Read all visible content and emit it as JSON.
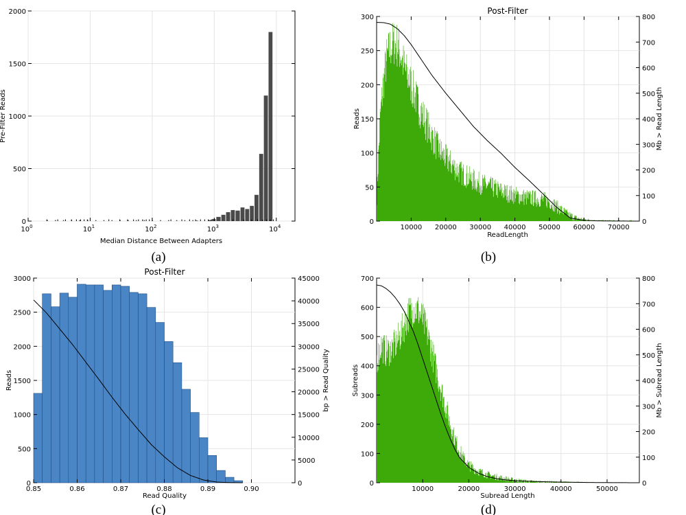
{
  "chart_data": [
    {
      "id": "a",
      "type": "bar",
      "caption": "(a)",
      "title": "",
      "xlabel": "Median Distance Between Adapters",
      "ylabel": "Pre-Filter Reads",
      "xscale": "log",
      "xlim": [
        1,
        20000
      ],
      "ylim": [
        0,
        2000
      ],
      "xticks": [
        {
          "base": "10",
          "exp": "0",
          "v": 1
        },
        {
          "base": "10",
          "exp": "1",
          "v": 10
        },
        {
          "base": "10",
          "exp": "2",
          "v": 100
        },
        {
          "base": "10",
          "exp": "3",
          "v": 1000
        },
        {
          "base": "10",
          "exp": "4",
          "v": 10000
        }
      ],
      "yticks": [
        "0",
        "500",
        "1000",
        "1500",
        "2000"
      ],
      "bar_color": "#4a4a4a",
      "grid": true,
      "bins": [
        {
          "x0": 500,
          "x1": 560,
          "y": 5
        },
        {
          "x0": 800,
          "x1": 920,
          "y": 10
        },
        {
          "x0": 920,
          "x1": 1080,
          "y": 20
        },
        {
          "x0": 1080,
          "x1": 1300,
          "y": 40
        },
        {
          "x0": 1300,
          "x1": 1550,
          "y": 60
        },
        {
          "x0": 1550,
          "x1": 1850,
          "y": 85
        },
        {
          "x0": 1850,
          "x1": 2200,
          "y": 105
        },
        {
          "x0": 2200,
          "x1": 2650,
          "y": 100
        },
        {
          "x0": 2650,
          "x1": 3150,
          "y": 130
        },
        {
          "x0": 3150,
          "x1": 3750,
          "y": 115
        },
        {
          "x0": 3750,
          "x1": 4450,
          "y": 145
        },
        {
          "x0": 4450,
          "x1": 5300,
          "y": 250
        },
        {
          "x0": 5300,
          "x1": 6300,
          "y": 640
        },
        {
          "x0": 6300,
          "x1": 7500,
          "y": 1195
        },
        {
          "x0": 7500,
          "x1": 8900,
          "y": 1800
        }
      ]
    },
    {
      "id": "b",
      "type": "bar",
      "caption": "(b)",
      "title": "Post-Filter",
      "xlabel": "ReadLength",
      "ylabel": "Reads",
      "y2label": "Mb > Read Length",
      "xlim": [
        0,
        76000
      ],
      "ylim": [
        0,
        300
      ],
      "y2lim": [
        0,
        800
      ],
      "xticks": [
        "10000",
        "20000",
        "30000",
        "40000",
        "50000",
        "60000",
        "70000"
      ],
      "xtick_values": [
        10000,
        20000,
        30000,
        40000,
        50000,
        60000,
        70000
      ],
      "yticks": [
        "0",
        "50",
        "100",
        "150",
        "200",
        "250",
        "300"
      ],
      "y2ticks": [
        "0",
        "100",
        "200",
        "300",
        "400",
        "500",
        "600",
        "700",
        "800"
      ],
      "bar_color": "#3eaa0a",
      "grid": true,
      "histogram_envelope": {
        "x": [
          0,
          1000,
          2000,
          3000,
          4000,
          5000,
          6000,
          7000,
          8000,
          9000,
          10000,
          12000,
          14000,
          16000,
          18000,
          20000,
          22000,
          24000,
          26000,
          28000,
          30000,
          32000,
          34000,
          36000,
          38000,
          40000,
          42000,
          44000,
          46000,
          48000,
          50000,
          52000,
          54000,
          56000,
          58000,
          60000,
          62000,
          64000,
          66000,
          68000,
          70000,
          72000,
          74000
        ],
        "y": [
          30,
          150,
          205,
          240,
          255,
          262,
          258,
          245,
          225,
          212,
          200,
          172,
          148,
          125,
          105,
          92,
          82,
          72,
          66,
          60,
          55,
          52,
          48,
          44,
          41,
          38,
          36,
          34,
          33,
          32,
          29,
          22,
          14,
          8,
          4,
          2,
          1,
          0.5,
          0.3,
          0.2,
          0.1,
          0.05,
          0
        ]
      },
      "cumulative_curve": {
        "x": [
          0,
          2000,
          4000,
          6000,
          8000,
          10000,
          12000,
          14000,
          16000,
          20000,
          24000,
          28000,
          32000,
          36000,
          40000,
          44000,
          48000,
          52000,
          56000,
          60000,
          64000,
          68000,
          72000,
          76000
        ],
        "y": [
          777,
          776,
          770,
          752,
          725,
          690,
          650,
          610,
          570,
          500,
          435,
          370,
          315,
          265,
          210,
          160,
          108,
          55,
          12,
          3,
          1,
          0.5,
          0.2,
          0
        ]
      }
    },
    {
      "id": "c",
      "type": "bar",
      "caption": "(c)",
      "title": "Post-Filter",
      "xlabel": "Read Quality",
      "ylabel": "Reads",
      "y2label": "bp > Read Quality",
      "xlim": [
        0.85,
        0.91
      ],
      "ylim": [
        0,
        3000
      ],
      "y2lim": [
        0,
        45000
      ],
      "xticks": [
        "0.85",
        "0.86",
        "0.87",
        "0.88",
        "0.89",
        "0.90"
      ],
      "xtick_values": [
        0.85,
        0.86,
        0.87,
        0.88,
        0.89,
        0.9
      ],
      "yticks": [
        "0",
        "500",
        "1000",
        "1500",
        "2000",
        "2500",
        "3000"
      ],
      "y2ticks": [
        "0",
        "5000",
        "10000",
        "15000",
        "20000",
        "25000",
        "30000",
        "35000",
        "40000",
        "45000"
      ],
      "bar_color": "#4a86c5",
      "bar_edge": "#1f4e85",
      "grid": true,
      "bin_start": 0.85,
      "bin_width": 0.002,
      "values": [
        1310,
        2770,
        2580,
        2780,
        2720,
        2910,
        2900,
        2900,
        2820,
        2900,
        2880,
        2790,
        2770,
        2570,
        2350,
        2070,
        1760,
        1370,
        1030,
        660,
        400,
        180,
        80,
        30
      ],
      "cumulative_curve": {
        "x": [
          0.85,
          0.853,
          0.856,
          0.859,
          0.862,
          0.865,
          0.868,
          0.871,
          0.874,
          0.877,
          0.88,
          0.883,
          0.886,
          0.889,
          0.892,
          0.895,
          0.898
        ],
        "y": [
          40200,
          37300,
          33800,
          30300,
          26500,
          22700,
          18800,
          15100,
          11700,
          8400,
          5700,
          3300,
          1600,
          600,
          150,
          30,
          0
        ]
      }
    },
    {
      "id": "d",
      "type": "bar",
      "caption": "(d)",
      "title": "",
      "xlabel": "Subread Length",
      "ylabel": "Subreads",
      "y2label": "Mb > Subread Length",
      "xlim": [
        0,
        57000
      ],
      "ylim": [
        0,
        700
      ],
      "y2lim": [
        0,
        800
      ],
      "xticks": [
        "10000",
        "20000",
        "30000",
        "40000",
        "50000"
      ],
      "xtick_values": [
        10000,
        20000,
        30000,
        40000,
        50000
      ],
      "yticks": [
        "0",
        "100",
        "200",
        "300",
        "400",
        "500",
        "600",
        "700"
      ],
      "y2ticks": [
        "0",
        "100",
        "200",
        "300",
        "400",
        "500",
        "600",
        "700",
        "800"
      ],
      "bar_color": "#3eaa0a",
      "grid": true,
      "histogram_envelope": {
        "x": [
          0,
          1000,
          2000,
          3000,
          4000,
          5000,
          6000,
          7000,
          8000,
          9000,
          10000,
          11000,
          12000,
          13000,
          14000,
          15000,
          16000,
          17000,
          18000,
          19000,
          20000,
          22000,
          24000,
          26000,
          28000,
          30000,
          32000,
          34000,
          36000,
          40000,
          44000,
          48000,
          52000,
          56000
        ],
        "y": [
          420,
          470,
          450,
          455,
          470,
          500,
          540,
          580,
          600,
          590,
          560,
          510,
          450,
          380,
          320,
          260,
          200,
          150,
          110,
          80,
          60,
          40,
          28,
          20,
          14,
          9,
          6,
          4,
          3,
          2,
          1,
          0.5,
          0.2,
          0
        ]
      },
      "cumulative_curve": {
        "x": [
          0,
          1000,
          2000,
          3000,
          4000,
          5000,
          6000,
          7000,
          8000,
          9000,
          10000,
          11000,
          12000,
          13000,
          14000,
          15000,
          16000,
          17000,
          18000,
          20000,
          22000,
          24000,
          26000,
          28000,
          30000,
          34000,
          38000,
          42000,
          46000,
          50000,
          54000,
          57000
        ],
        "y": [
          773,
          770,
          760,
          745,
          725,
          700,
          670,
          630,
          590,
          540,
          485,
          430,
          375,
          320,
          265,
          215,
          170,
          130,
          98,
          60,
          38,
          24,
          16,
          11,
          8,
          5,
          3,
          2,
          1,
          0.5,
          0.2,
          0
        ]
      }
    }
  ]
}
